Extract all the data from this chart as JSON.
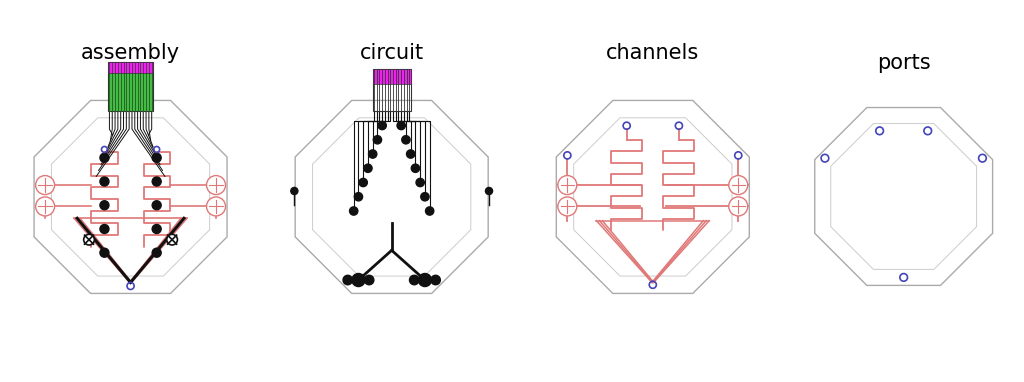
{
  "titles": [
    "assembly",
    "circuit",
    "channels",
    "ports"
  ],
  "title_fontsize": 15,
  "bg_color": "#ffffff",
  "chip_edge": "#aaaaaa",
  "chip_lw": 1.0,
  "channel_color": "#e07878",
  "channel_lw": 1.3,
  "electrode_color": "#111111",
  "green_color": "#44bb44",
  "magenta_color": "#ee22ee",
  "blue_color": "#4444bb",
  "black": "#111111"
}
